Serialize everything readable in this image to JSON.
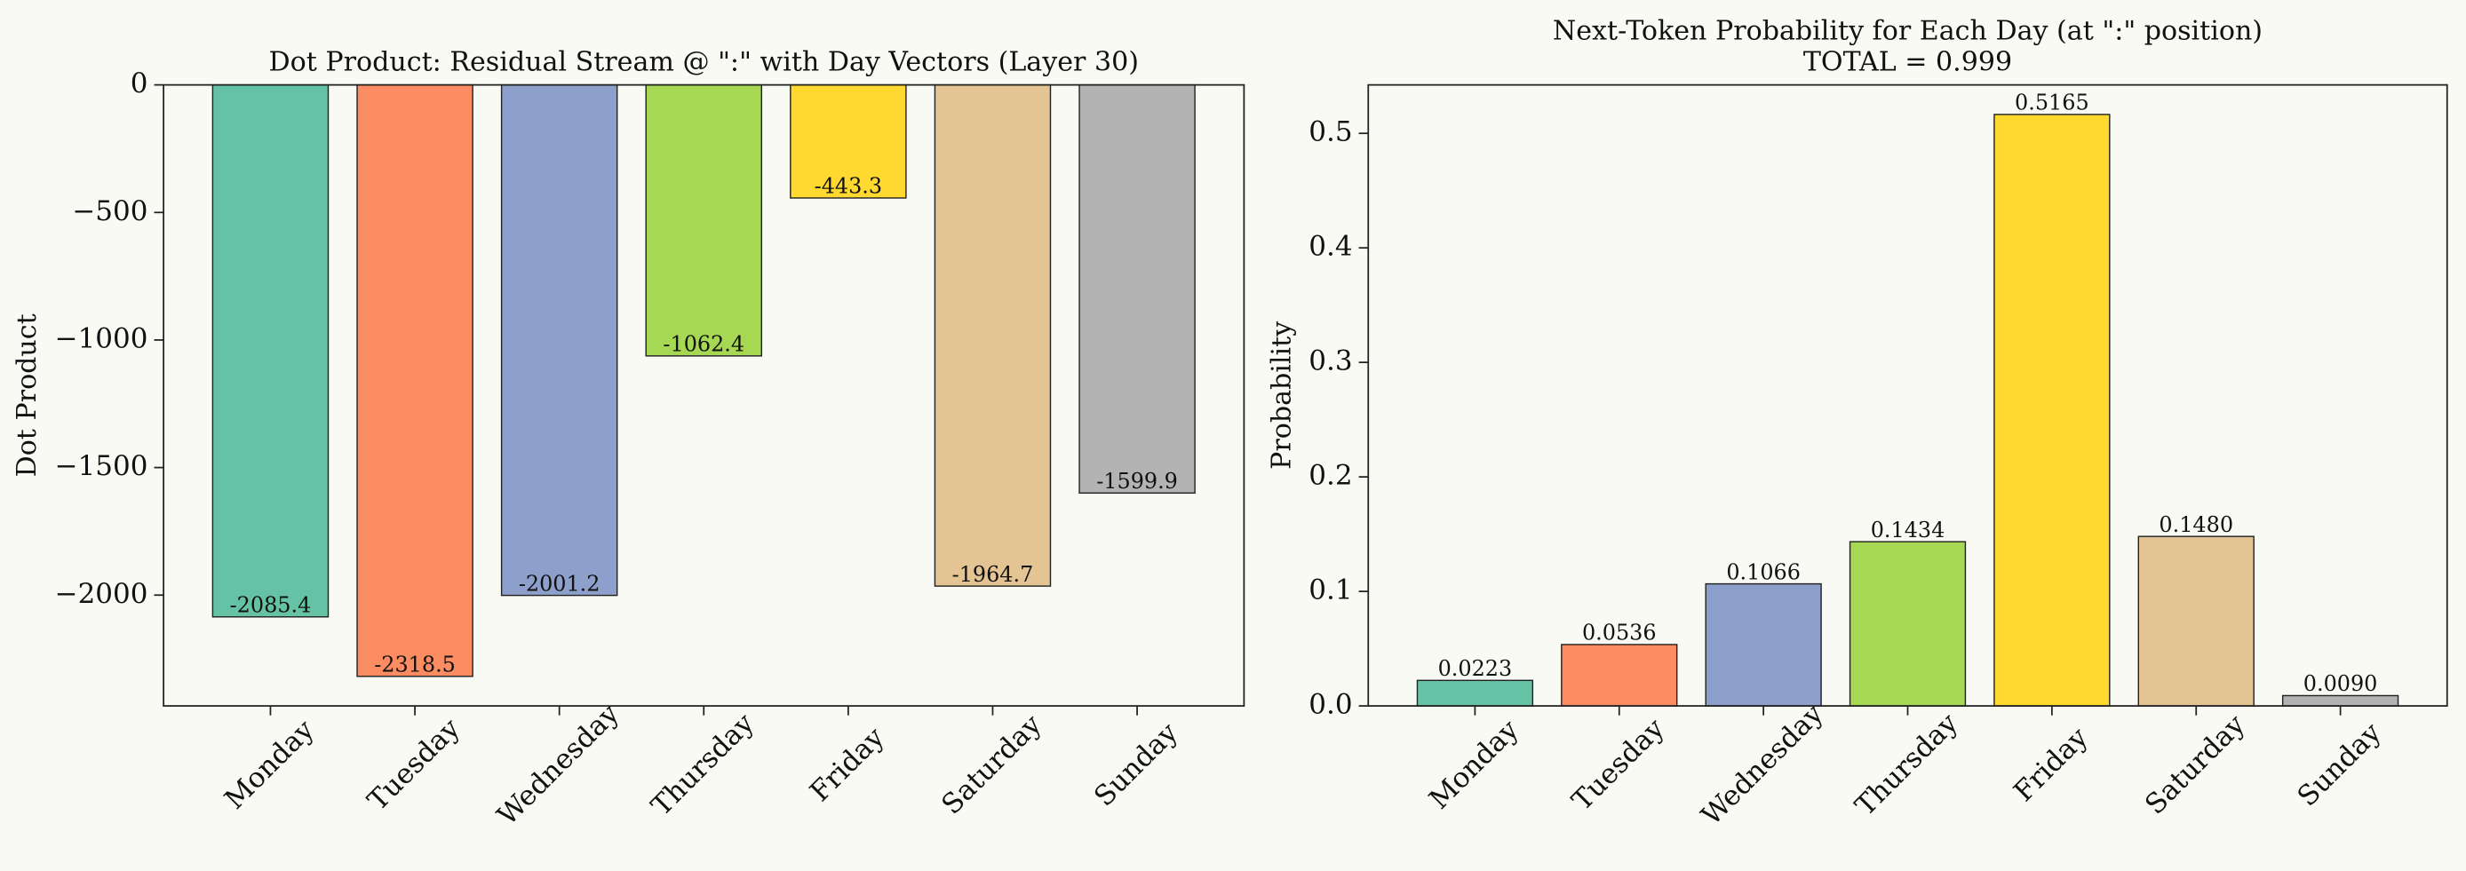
{
  "chart_data": [
    {
      "type": "bar",
      "title": [
        "Dot Product: Residual Stream @ \":\" with Day Vectors (Layer 30)"
      ],
      "ylabel": "Dot Product",
      "categories": [
        "Monday",
        "Tuesday",
        "Wednesday",
        "Thursday",
        "Friday",
        "Saturday",
        "Sunday"
      ],
      "values": [
        -2085.4,
        -2318.5,
        -2001.2,
        -1062.4,
        -443.3,
        -1964.7,
        -1599.9
      ],
      "colors": [
        "#66c2a5",
        "#fc8d62",
        "#8da0cb",
        "#a6d854",
        "#ffd92f",
        "#e5c494",
        "#b3b3b3"
      ],
      "label_position": "inside",
      "ylim": [
        -2434.4,
        0
      ],
      "yticks": [
        {
          "value": 0,
          "label": "0"
        },
        {
          "value": -500,
          "label": "−500"
        },
        {
          "value": -1000,
          "label": "−1000"
        },
        {
          "value": -1500,
          "label": "−1500"
        },
        {
          "value": -2000,
          "label": "−2000"
        }
      ]
    },
    {
      "type": "bar",
      "title": [
        "Next-Token Probability for Each Day (at \":\" position)",
        "TOTAL  =  0.999"
      ],
      "ylabel": "Probability",
      "categories": [
        "Monday",
        "Tuesday",
        "Wednesday",
        "Thursday",
        "Friday",
        "Saturday",
        "Sunday"
      ],
      "values": [
        0.0223,
        0.0536,
        0.1066,
        0.1434,
        0.5165,
        0.148,
        0.009
      ],
      "value_labels": [
        "0.0223",
        "0.0536",
        "0.1066",
        "0.1434",
        "0.5165",
        "0.1480",
        "0.0090"
      ],
      "colors": [
        "#66c2a5",
        "#fc8d62",
        "#8da0cb",
        "#a6d854",
        "#ffd92f",
        "#e5c494",
        "#b3b3b3"
      ],
      "label_position": "outside",
      "ylim": [
        0,
        0.5423
      ],
      "yticks": [
        {
          "value": 0,
          "label": "0.0"
        },
        {
          "value": 0.1,
          "label": "0.1"
        },
        {
          "value": 0.2,
          "label": "0.2"
        },
        {
          "value": 0.3,
          "label": "0.3"
        },
        {
          "value": 0.4,
          "label": "0.4"
        },
        {
          "value": 0.5,
          "label": "0.5"
        }
      ]
    }
  ]
}
